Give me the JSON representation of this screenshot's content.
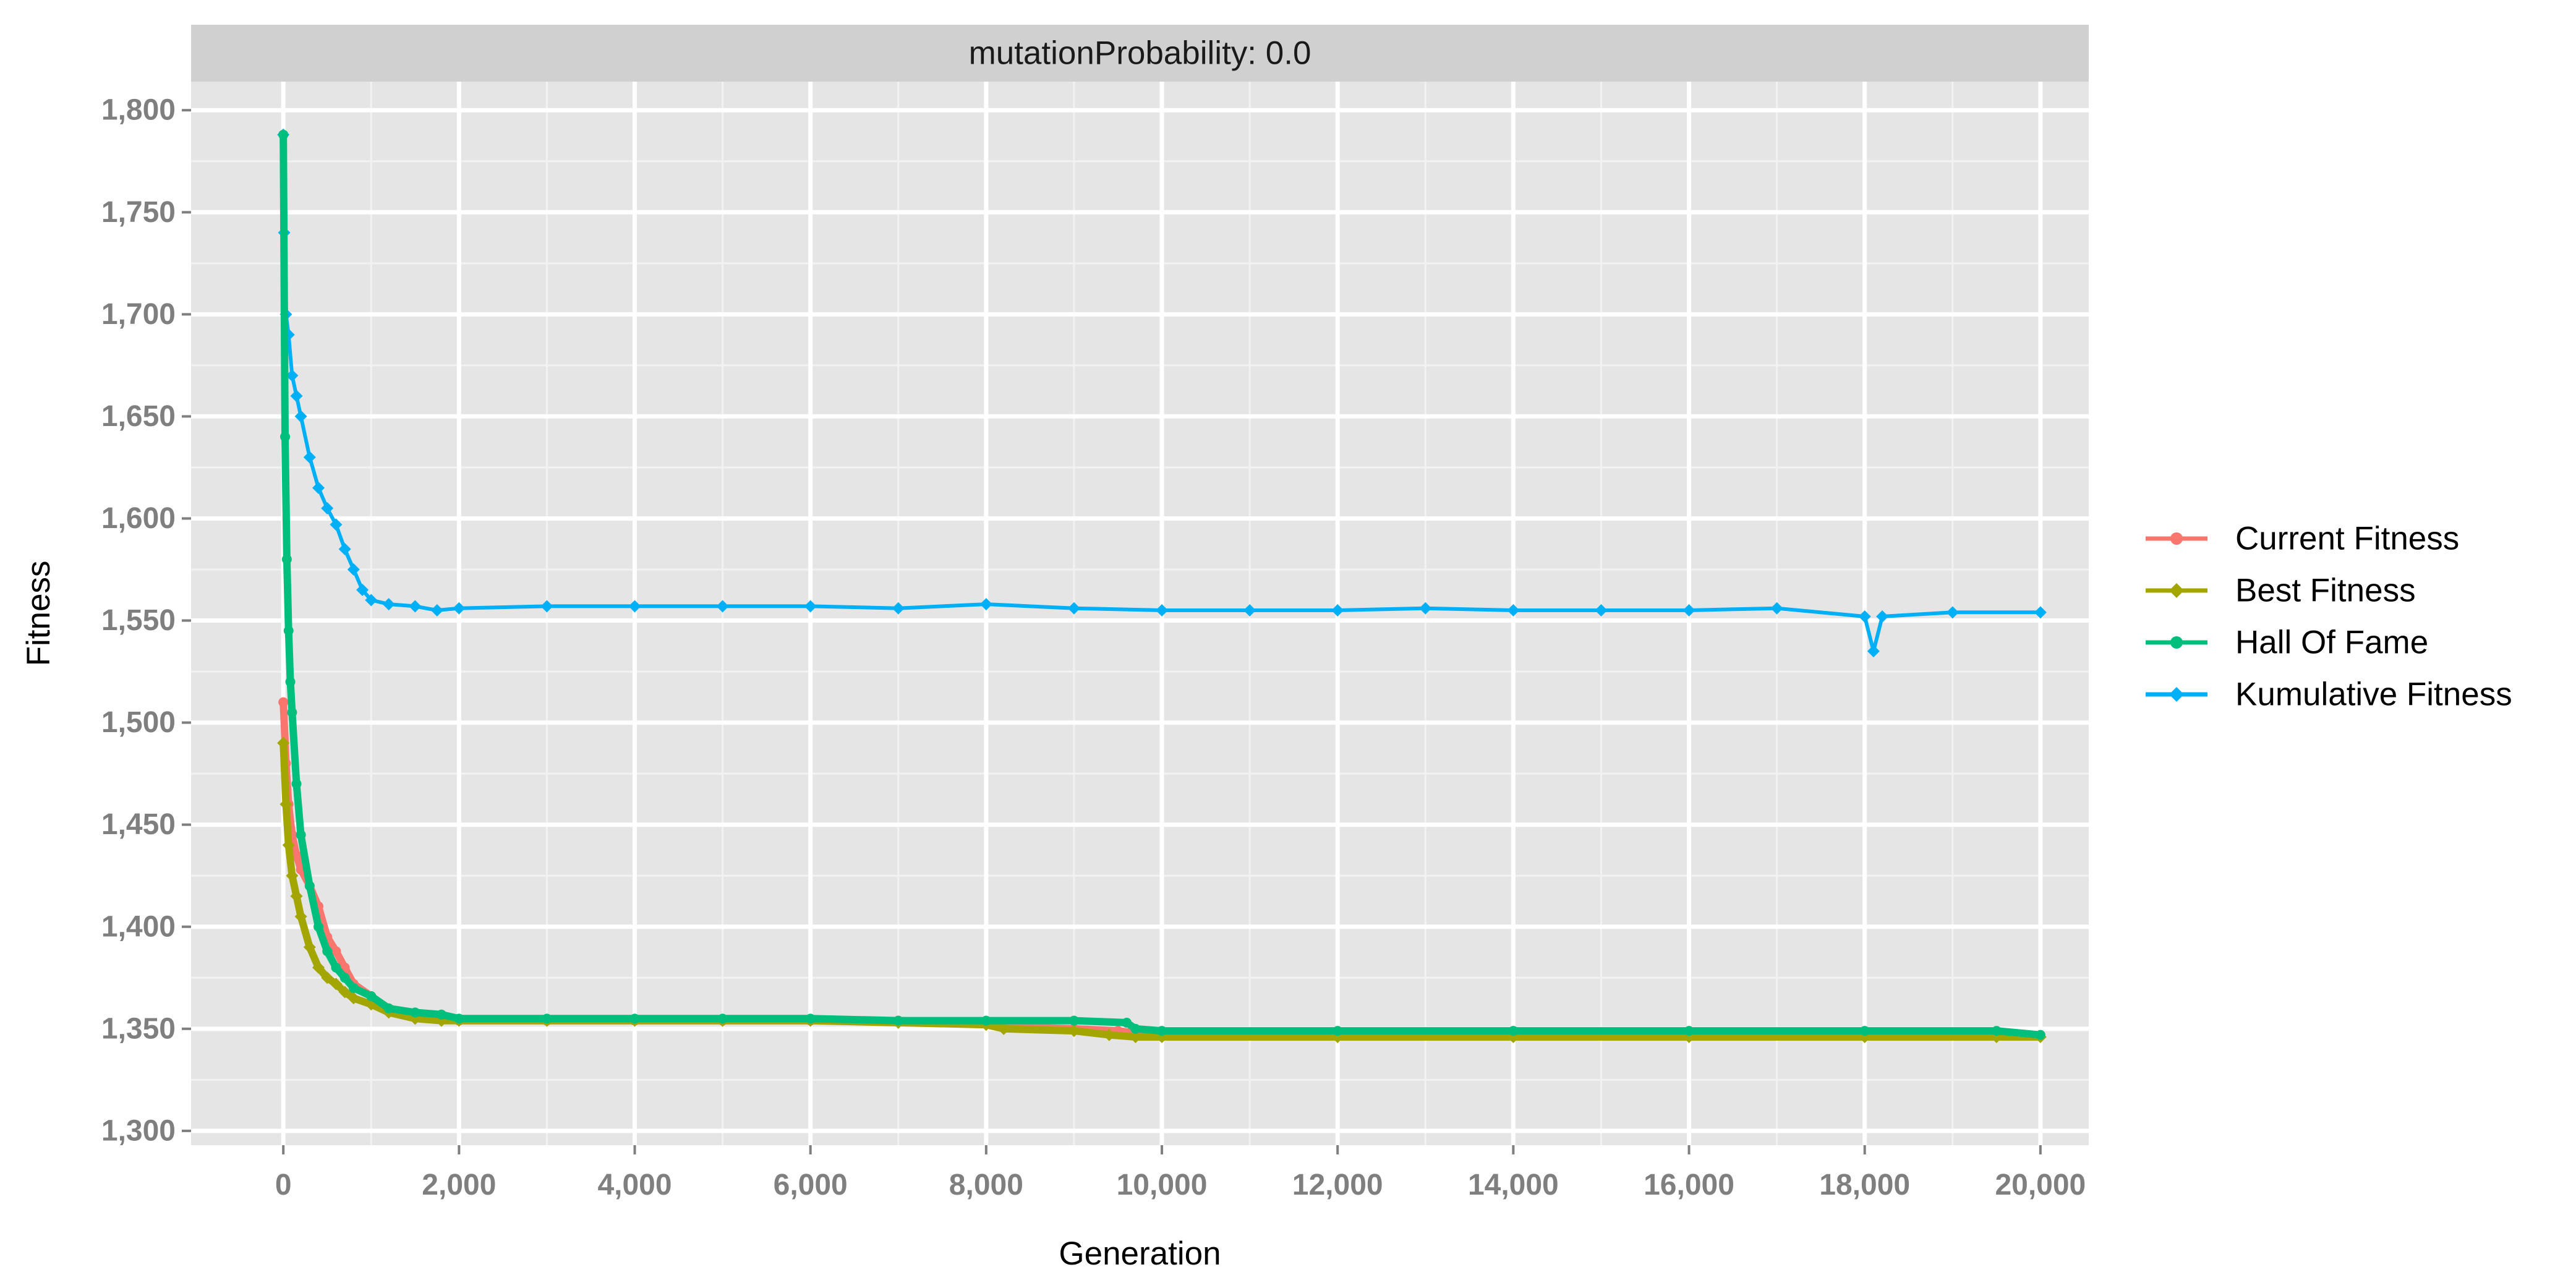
{
  "chart_data": {
    "type": "line",
    "facet_label": "mutationProbability: 0.0",
    "xlabel": "Generation",
    "ylabel": "Fitness",
    "xlim": [
      -1050,
      20550
    ],
    "ylim": [
      1293,
      1814
    ],
    "x_ticks": [
      0,
      2000,
      4000,
      6000,
      8000,
      10000,
      12000,
      14000,
      16000,
      18000,
      20000
    ],
    "x_tick_labels": [
      "0",
      "2,000",
      "4,000",
      "6,000",
      "8,000",
      "10,000",
      "12,000",
      "14,000",
      "16,000",
      "18,000",
      "20,000"
    ],
    "y_ticks": [
      1300,
      1350,
      1400,
      1450,
      1500,
      1550,
      1600,
      1650,
      1700,
      1750,
      1800
    ],
    "y_tick_labels": [
      "1,300",
      "1,350",
      "1,400",
      "1,450",
      "1,500",
      "1,550",
      "1,600",
      "1,650",
      "1,700",
      "1,750",
      "1,800"
    ],
    "grid": true,
    "legend_position": "right",
    "series": [
      {
        "name": "Current Fitness",
        "color": "#F8766D",
        "marker": "circle",
        "x": [
          0,
          30,
          60,
          100,
          150,
          200,
          300,
          400,
          500,
          600,
          700,
          800,
          1000,
          1200,
          1500,
          1800,
          2000,
          3000,
          4000,
          5000,
          6000,
          7000,
          8000,
          8200,
          9000,
          9500,
          9700,
          10000,
          12000,
          14000,
          16000,
          18000,
          19500,
          20000
        ],
        "y": [
          1510,
          1480,
          1460,
          1445,
          1435,
          1428,
          1420,
          1410,
          1395,
          1388,
          1380,
          1372,
          1366,
          1360,
          1356,
          1355,
          1354,
          1354,
          1354,
          1354,
          1354,
          1354,
          1353,
          1351,
          1350,
          1349,
          1348,
          1348,
          1348,
          1348,
          1348,
          1348,
          1348,
          1347
        ]
      },
      {
        "name": "Best Fitness",
        "color": "#A3A500",
        "marker": "diamond",
        "x": [
          0,
          30,
          60,
          100,
          150,
          200,
          300,
          400,
          500,
          600,
          700,
          800,
          1000,
          1200,
          1500,
          1800,
          2000,
          3000,
          4000,
          5000,
          6000,
          7000,
          8000,
          8200,
          9000,
          9400,
          9700,
          10000,
          12000,
          14000,
          16000,
          18000,
          19500,
          20000
        ],
        "y": [
          1490,
          1460,
          1440,
          1425,
          1415,
          1405,
          1390,
          1380,
          1375,
          1372,
          1368,
          1365,
          1362,
          1358,
          1355,
          1354,
          1354,
          1354,
          1354,
          1354,
          1354,
          1353,
          1352,
          1350,
          1349,
          1347,
          1346,
          1346,
          1346,
          1346,
          1346,
          1346,
          1346,
          1346
        ]
      },
      {
        "name": "Hall Of Fame",
        "color": "#00BF7D",
        "marker": "circle",
        "x": [
          0,
          20,
          40,
          60,
          80,
          100,
          150,
          200,
          300,
          400,
          500,
          600,
          700,
          800,
          1000,
          1200,
          1500,
          1800,
          2000,
          3000,
          4000,
          5000,
          6000,
          7000,
          8000,
          9000,
          9600,
          9700,
          10000,
          12000,
          14000,
          16000,
          18000,
          19500,
          20000
        ],
        "y": [
          1788,
          1640,
          1580,
          1545,
          1520,
          1505,
          1470,
          1445,
          1420,
          1400,
          1388,
          1380,
          1375,
          1370,
          1366,
          1360,
          1358,
          1357,
          1355,
          1355,
          1355,
          1355,
          1355,
          1354,
          1354,
          1354,
          1353,
          1350,
          1349,
          1349,
          1349,
          1349,
          1349,
          1349,
          1347
        ]
      },
      {
        "name": "Kumulative Fitness",
        "color": "#00B0F6",
        "marker": "diamond",
        "x": [
          0,
          10,
          30,
          60,
          100,
          150,
          200,
          300,
          400,
          500,
          600,
          700,
          800,
          900,
          1000,
          1200,
          1500,
          1750,
          2000,
          3000,
          4000,
          5000,
          6000,
          7000,
          8000,
          9000,
          10000,
          11000,
          12000,
          13000,
          14000,
          15000,
          16000,
          17000,
          18000,
          18100,
          18200,
          19000,
          20000
        ],
        "y": [
          1788,
          1740,
          1700,
          1690,
          1670,
          1660,
          1650,
          1630,
          1615,
          1605,
          1597,
          1585,
          1575,
          1565,
          1560,
          1558,
          1557,
          1555,
          1556,
          1557,
          1557,
          1557,
          1557,
          1556,
          1558,
          1556,
          1555,
          1555,
          1555,
          1556,
          1555,
          1555,
          1555,
          1556,
          1552,
          1535,
          1552,
          1554,
          1554
        ]
      }
    ]
  }
}
